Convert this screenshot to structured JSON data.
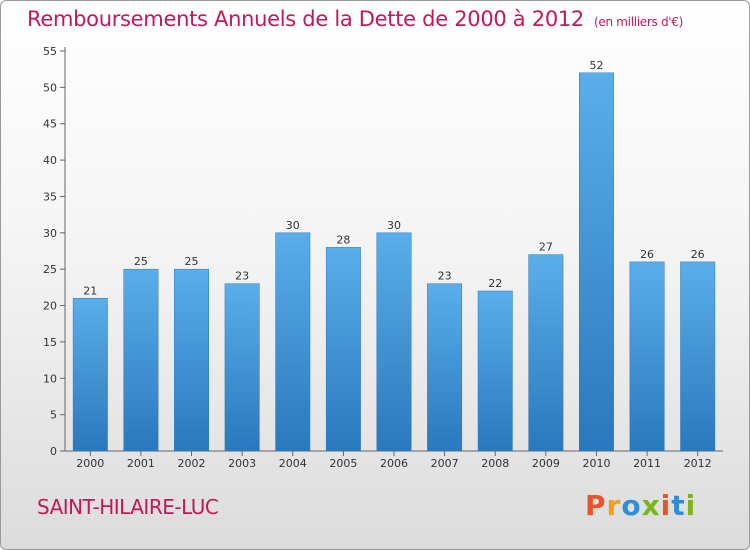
{
  "chart_data": {
    "type": "bar",
    "title": "Remboursements Annuels de la Dette de 2000 à 2012",
    "unit_note": "(en milliers d'€)",
    "categories": [
      "2000",
      "2001",
      "2002",
      "2003",
      "2004",
      "2005",
      "2006",
      "2007",
      "2008",
      "2009",
      "2010",
      "2011",
      "2012"
    ],
    "values": [
      21,
      25,
      25,
      23,
      30,
      28,
      30,
      23,
      22,
      27,
      52,
      26,
      26
    ],
    "ylim": [
      0,
      55
    ],
    "yticks": [
      0,
      5,
      10,
      15,
      20,
      25,
      30,
      35,
      40,
      45,
      50,
      55
    ],
    "bar_color": "#3a8fd4",
    "grid": false,
    "legend": "none"
  },
  "commune": "SAINT-HILAIRE-LUC",
  "logo": {
    "text": "Proxiti",
    "letter_colors": [
      "#e8552a",
      "#f0a01c",
      "#2e8fd6",
      "#7ab51d",
      "#e8552a",
      "#2e8fd6",
      "#7ab51d"
    ]
  },
  "title_color": "#c2185b"
}
